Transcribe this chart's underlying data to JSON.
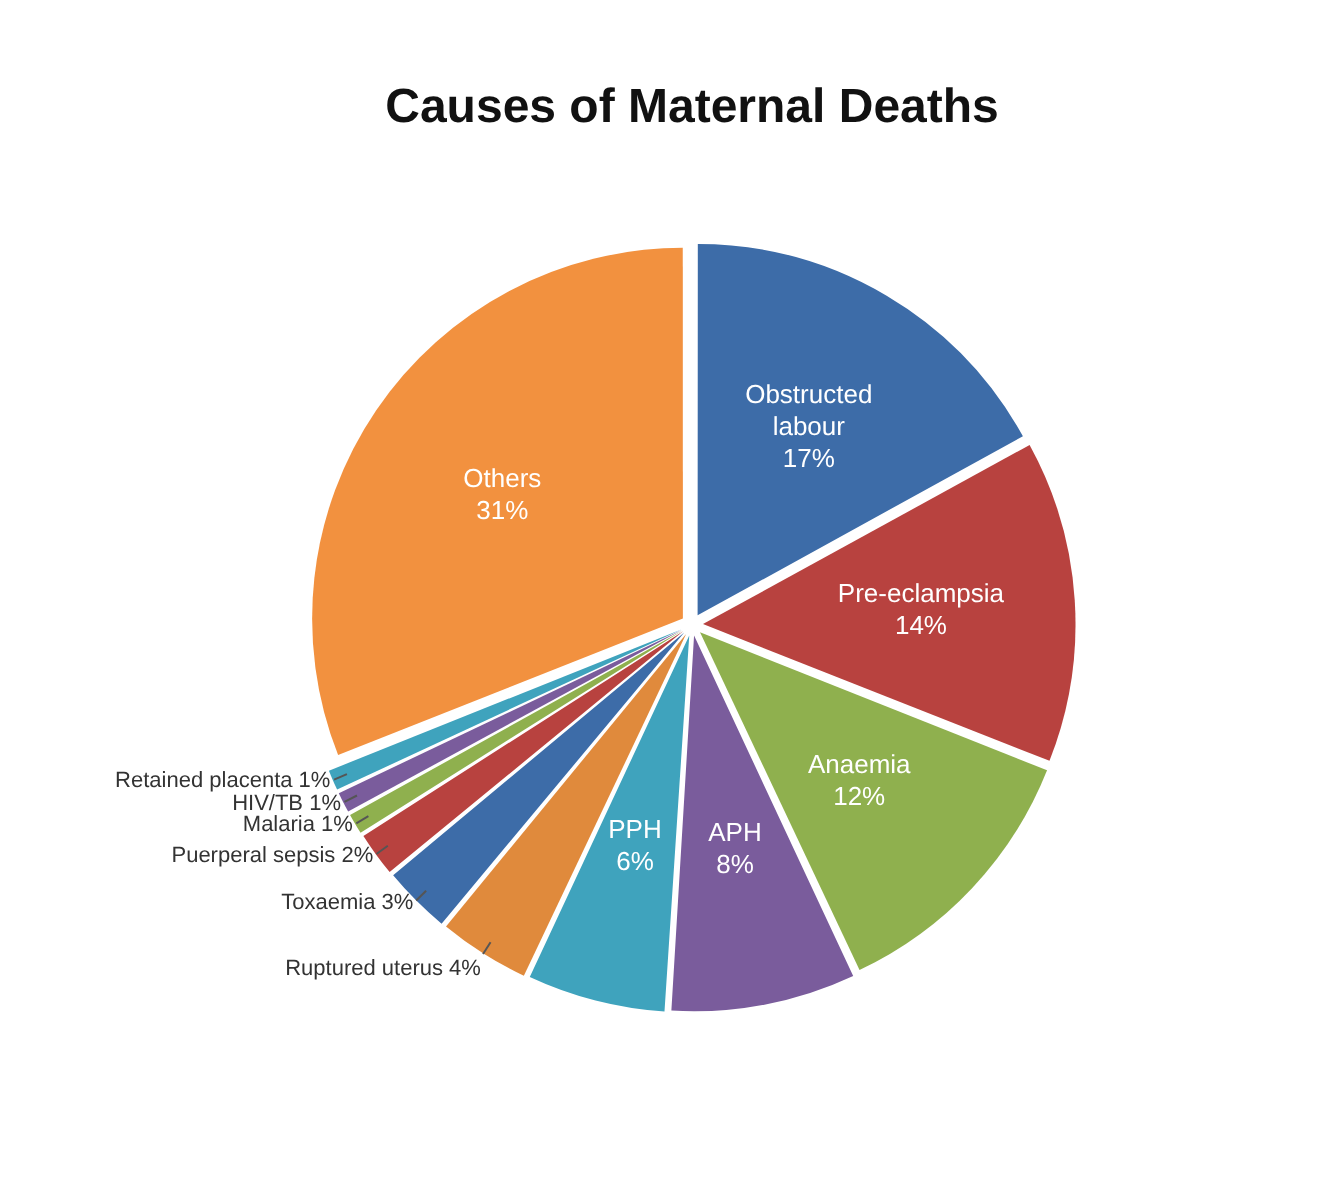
{
  "chart_data": {
    "type": "pie",
    "title": "Causes of Maternal Deaths",
    "categories": [
      "Obstructed labour",
      "Pre-eclampsia",
      "Anaemia",
      "APH",
      "PPH",
      "Ruptured uterus",
      "Toxaemia",
      "Puerperal sepsis",
      "Malaria",
      "HIV/TB",
      "Retained placenta",
      "Others"
    ],
    "values": [
      17,
      14,
      12,
      8,
      6,
      4,
      3,
      2,
      1,
      1,
      1,
      31
    ],
    "value_labels": [
      "17%",
      "14%",
      "12%",
      "8%",
      "6%",
      "4%",
      "3%",
      "2%",
      "1%",
      "1%",
      "1%",
      "31%"
    ],
    "colors": [
      "#3d6ca8",
      "#b8423f",
      "#8fb04e",
      "#7a5c9c",
      "#3fa3bd",
      "#e08a3c",
      "#3d6ca8",
      "#b8423f",
      "#8fb04e",
      "#7a5c9c",
      "#3fa3bd",
      "#f2913f"
    ],
    "legend": false
  }
}
